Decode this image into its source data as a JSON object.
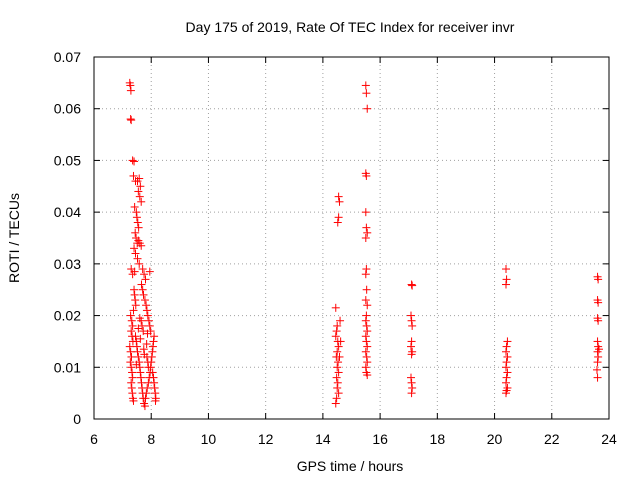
{
  "chart_data": {
    "type": "scatter",
    "title": "Day 175 of 2019, Rate Of TEC Index for receiver invr",
    "xlabel": "GPS time / hours",
    "ylabel": "ROTI / TECUs",
    "xlim": [
      6,
      24
    ],
    "ylim": [
      0,
      0.07
    ],
    "xticks": [
      6,
      8,
      10,
      12,
      14,
      16,
      18,
      20,
      22,
      24
    ],
    "yticks": [
      0,
      0.01,
      0.02,
      0.03,
      0.04,
      0.05,
      0.06,
      0.07
    ],
    "xtick_labels": [
      "6",
      "8",
      "10",
      "12",
      "14",
      "16",
      "18",
      "20",
      "22",
      "24"
    ],
    "ytick_labels": [
      "0",
      "0.01",
      "0.02",
      "0.03",
      "0.04",
      "0.05",
      "0.06",
      "0.07"
    ],
    "grid": true,
    "marker": "+",
    "color": "#ff0000",
    "series": [
      {
        "name": "ROTI",
        "points": [
          [
            7.25,
            0.065
          ],
          [
            7.27,
            0.0645
          ],
          [
            7.29,
            0.0635
          ],
          [
            7.28,
            0.058
          ],
          [
            7.3,
            0.0578
          ],
          [
            7.35,
            0.05
          ],
          [
            7.4,
            0.0498
          ],
          [
            7.38,
            0.047
          ],
          [
            7.45,
            0.046
          ],
          [
            7.52,
            0.046
          ],
          [
            7.58,
            0.0465
          ],
          [
            7.62,
            0.045
          ],
          [
            7.55,
            0.044
          ],
          [
            7.6,
            0.043
          ],
          [
            7.65,
            0.042
          ],
          [
            7.42,
            0.041
          ],
          [
            7.48,
            0.04
          ],
          [
            7.5,
            0.039
          ],
          [
            7.53,
            0.038
          ],
          [
            7.56,
            0.037
          ],
          [
            7.44,
            0.036
          ],
          [
            7.47,
            0.035
          ],
          [
            7.51,
            0.034
          ],
          [
            7.55,
            0.0345
          ],
          [
            7.6,
            0.034
          ],
          [
            7.65,
            0.0335
          ],
          [
            7.4,
            0.033
          ],
          [
            7.45,
            0.032
          ],
          [
            7.52,
            0.031
          ],
          [
            7.58,
            0.03
          ],
          [
            7.3,
            0.029
          ],
          [
            7.35,
            0.028
          ],
          [
            7.42,
            0.0285
          ],
          [
            7.7,
            0.029
          ],
          [
            7.75,
            0.028
          ],
          [
            7.8,
            0.027
          ],
          [
            7.66,
            0.026
          ],
          [
            7.7,
            0.025
          ],
          [
            7.73,
            0.024
          ],
          [
            7.78,
            0.023
          ],
          [
            7.82,
            0.022
          ],
          [
            7.85,
            0.021
          ],
          [
            7.88,
            0.02
          ],
          [
            7.6,
            0.0195
          ],
          [
            7.65,
            0.019
          ],
          [
            7.68,
            0.018
          ],
          [
            7.72,
            0.017
          ],
          [
            7.28,
            0.02
          ],
          [
            7.32,
            0.019
          ],
          [
            7.35,
            0.018
          ],
          [
            7.3,
            0.017
          ],
          [
            7.33,
            0.016
          ],
          [
            7.36,
            0.015
          ],
          [
            7.25,
            0.014
          ],
          [
            7.28,
            0.013
          ],
          [
            7.31,
            0.012
          ],
          [
            7.27,
            0.011
          ],
          [
            7.3,
            0.01
          ],
          [
            7.33,
            0.009
          ],
          [
            7.35,
            0.008
          ],
          [
            7.3,
            0.007
          ],
          [
            7.32,
            0.006
          ],
          [
            7.34,
            0.005
          ],
          [
            7.36,
            0.004
          ],
          [
            7.38,
            0.0035
          ],
          [
            7.45,
            0.016
          ],
          [
            7.48,
            0.015
          ],
          [
            7.5,
            0.014
          ],
          [
            7.52,
            0.013
          ],
          [
            7.55,
            0.012
          ],
          [
            7.58,
            0.011
          ],
          [
            7.6,
            0.01
          ],
          [
            7.62,
            0.009
          ],
          [
            7.64,
            0.008
          ],
          [
            7.66,
            0.007
          ],
          [
            7.68,
            0.006
          ],
          [
            7.7,
            0.005
          ],
          [
            7.72,
            0.004
          ],
          [
            7.75,
            0.003
          ],
          [
            7.78,
            0.0025
          ],
          [
            7.8,
            0.004
          ],
          [
            7.83,
            0.005
          ],
          [
            7.86,
            0.006
          ],
          [
            7.9,
            0.007
          ],
          [
            7.93,
            0.008
          ],
          [
            7.96,
            0.009
          ],
          [
            7.98,
            0.01
          ],
          [
            8.0,
            0.011
          ],
          [
            8.02,
            0.012
          ],
          [
            8.04,
            0.013
          ],
          [
            8.06,
            0.014
          ],
          [
            8.08,
            0.015
          ],
          [
            8.1,
            0.016
          ],
          [
            8.05,
            0.009
          ],
          [
            8.08,
            0.008
          ],
          [
            8.1,
            0.007
          ],
          [
            8.12,
            0.006
          ],
          [
            8.14,
            0.005
          ],
          [
            8.16,
            0.004
          ],
          [
            8.15,
            0.0035
          ],
          [
            7.95,
            0.0285
          ],
          [
            7.92,
            0.019
          ],
          [
            7.95,
            0.018
          ],
          [
            7.98,
            0.017
          ],
          [
            7.85,
            0.012
          ],
          [
            7.88,
            0.011
          ],
          [
            7.9,
            0.01
          ],
          [
            7.4,
            0.025
          ],
          [
            7.42,
            0.024
          ],
          [
            7.44,
            0.023
          ],
          [
            7.46,
            0.022
          ],
          [
            7.38,
            0.021
          ],
          [
            7.62,
            0.0155
          ],
          [
            7.74,
            0.0135
          ],
          [
            7.76,
            0.0125
          ],
          [
            7.84,
            0.0145
          ],
          [
            7.87,
            0.0165
          ],
          [
            7.55,
            0.0175
          ],
          [
            7.48,
            0.0105
          ],
          [
            14.45,
            0.0215
          ],
          [
            14.5,
            0.018
          ],
          [
            14.48,
            0.017
          ],
          [
            14.45,
            0.016
          ],
          [
            14.52,
            0.015
          ],
          [
            14.55,
            0.014
          ],
          [
            14.5,
            0.013
          ],
          [
            14.47,
            0.012
          ],
          [
            14.53,
            0.011
          ],
          [
            14.5,
            0.01
          ],
          [
            14.55,
            0.009
          ],
          [
            14.48,
            0.008
          ],
          [
            14.52,
            0.007
          ],
          [
            14.5,
            0.006
          ],
          [
            14.55,
            0.005
          ],
          [
            14.48,
            0.004
          ],
          [
            14.45,
            0.003
          ],
          [
            14.6,
            0.019
          ],
          [
            14.62,
            0.015
          ],
          [
            14.58,
            0.012
          ],
          [
            14.55,
            0.043
          ],
          [
            14.58,
            0.042
          ],
          [
            14.55,
            0.039
          ],
          [
            14.52,
            0.038
          ],
          [
            15.5,
            0.0645
          ],
          [
            15.52,
            0.063
          ],
          [
            15.55,
            0.06
          ],
          [
            15.5,
            0.0475
          ],
          [
            15.52,
            0.047
          ],
          [
            15.5,
            0.04
          ],
          [
            15.52,
            0.037
          ],
          [
            15.55,
            0.036
          ],
          [
            15.5,
            0.035
          ],
          [
            15.52,
            0.029
          ],
          [
            15.5,
            0.028
          ],
          [
            15.53,
            0.025
          ],
          [
            15.5,
            0.023
          ],
          [
            15.55,
            0.022
          ],
          [
            15.52,
            0.02
          ],
          [
            15.5,
            0.019
          ],
          [
            15.53,
            0.018
          ],
          [
            15.55,
            0.017
          ],
          [
            15.5,
            0.016
          ],
          [
            15.52,
            0.015
          ],
          [
            15.55,
            0.014
          ],
          [
            15.5,
            0.013
          ],
          [
            15.53,
            0.012
          ],
          [
            15.55,
            0.011
          ],
          [
            15.5,
            0.01
          ],
          [
            15.52,
            0.009
          ],
          [
            15.55,
            0.0085
          ],
          [
            17.1,
            0.026
          ],
          [
            17.12,
            0.0258
          ],
          [
            17.08,
            0.02
          ],
          [
            17.1,
            0.019
          ],
          [
            17.12,
            0.018
          ],
          [
            17.1,
            0.015
          ],
          [
            17.08,
            0.014
          ],
          [
            17.12,
            0.013
          ],
          [
            17.1,
            0.0125
          ],
          [
            17.08,
            0.008
          ],
          [
            17.1,
            0.007
          ],
          [
            17.12,
            0.006
          ],
          [
            17.1,
            0.005
          ],
          [
            20.4,
            0.029
          ],
          [
            20.42,
            0.027
          ],
          [
            20.4,
            0.026
          ],
          [
            20.45,
            0.015
          ],
          [
            20.42,
            0.014
          ],
          [
            20.4,
            0.013
          ],
          [
            20.45,
            0.012
          ],
          [
            20.42,
            0.011
          ],
          [
            20.4,
            0.01
          ],
          [
            20.45,
            0.009
          ],
          [
            20.42,
            0.008
          ],
          [
            20.4,
            0.007
          ],
          [
            20.45,
            0.006
          ],
          [
            20.42,
            0.0055
          ],
          [
            20.4,
            0.005
          ],
          [
            23.6,
            0.0275
          ],
          [
            23.62,
            0.027
          ],
          [
            23.6,
            0.023
          ],
          [
            23.62,
            0.0225
          ],
          [
            23.6,
            0.0195
          ],
          [
            23.62,
            0.019
          ],
          [
            23.6,
            0.015
          ],
          [
            23.62,
            0.014
          ],
          [
            23.65,
            0.0135
          ],
          [
            23.6,
            0.013
          ],
          [
            23.62,
            0.012
          ],
          [
            23.6,
            0.011
          ],
          [
            23.58,
            0.0095
          ],
          [
            23.6,
            0.008
          ]
        ]
      }
    ]
  }
}
